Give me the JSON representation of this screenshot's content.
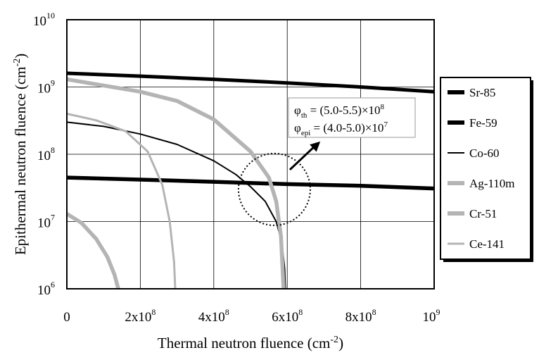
{
  "chart_data": {
    "type": "line",
    "xlabel": "Thermal neutron fluence (cm⁻²)",
    "xlabel_base": "Thermal neutron fluence (cm",
    "xlabel_exp": "-2",
    "xlabel_close": ")",
    "ylabel": "Epithermal neutron fluence (cm⁻²)",
    "ylabel_base": "Epithermal neutron fluence (cm",
    "ylabel_exp": "-2",
    "ylabel_close": ")",
    "xlim": [
      0,
      1000000000.0
    ],
    "ylim": [
      1000000.0,
      10000000000.0
    ],
    "yscale": "log",
    "grid": true,
    "legend_position": "right",
    "x_ticks": [
      {
        "value": 0,
        "base": "0",
        "exp": ""
      },
      {
        "value": 200000000.0,
        "base": "2x10",
        "exp": "8"
      },
      {
        "value": 400000000.0,
        "base": "4x10",
        "exp": "8"
      },
      {
        "value": 600000000.0,
        "base": "6x10",
        "exp": "8"
      },
      {
        "value": 800000000.0,
        "base": "8x10",
        "exp": "8"
      },
      {
        "value": 1000000000.0,
        "base": "10",
        "exp": "9"
      }
    ],
    "y_ticks": [
      {
        "value": 1000000.0,
        "base": "10",
        "exp": "6"
      },
      {
        "value": 10000000.0,
        "base": "10",
        "exp": "7"
      },
      {
        "value": 100000000.0,
        "base": "10",
        "exp": "8"
      },
      {
        "value": 1000000000.0,
        "base": "10",
        "exp": "9"
      },
      {
        "value": 10000000000.0,
        "base": "10",
        "exp": "10"
      }
    ],
    "series": [
      {
        "name": "Sr-85",
        "color": "#000000",
        "style": "thick",
        "x": [
          0,
          200000000.0,
          400000000.0,
          600000000.0,
          800000000.0,
          1000000000.0
        ],
        "y": [
          1600000000.0,
          1450000000.0,
          1300000000.0,
          1150000000.0,
          1000000000.0,
          850000000.0
        ]
      },
      {
        "name": "Fe-59",
        "color": "#000000",
        "style": "thick",
        "x": [
          0,
          200000000.0,
          400000000.0,
          600000000.0,
          800000000.0,
          1000000000.0
        ],
        "y": [
          45000000.0,
          42000000.0,
          39000000.0,
          36000000.0,
          34000000.0,
          31000000.0
        ]
      },
      {
        "name": "Co-60",
        "color": "#000000",
        "style": "thin",
        "x": [
          0,
          100000000.0,
          200000000.0,
          300000000.0,
          400000000.0,
          460000000.0,
          500000000.0,
          540000000.0,
          570000000.0,
          585000000.0,
          593000000.0,
          595000000.0
        ],
        "y": [
          300000000.0,
          260000000.0,
          200000000.0,
          140000000.0,
          80000000.0,
          50000000.0,
          33000000.0,
          20000000.0,
          10000000.0,
          5000000.0,
          2000000.0,
          1000000.0
        ]
      },
      {
        "name": "Ag-110m",
        "color": "#b4b4b4",
        "style": "thick",
        "x": [
          0,
          200000000.0,
          300000000.0,
          400000000.0,
          500000000.0,
          550000000.0,
          570000000.0,
          583000000.0,
          590000000.0
        ],
        "y": [
          1300000000.0,
          850000000.0,
          620000000.0,
          330000000.0,
          110000000.0,
          45000000.0,
          20000000.0,
          6000000.0,
          1000000.0
        ]
      },
      {
        "name": "Cr-51",
        "color": "#b4b4b4",
        "style": "thick",
        "x": [
          0,
          40000000.0,
          80000000.0,
          110000000.0,
          130000000.0,
          140000000.0
        ],
        "y": [
          13000000.0,
          9500000.0,
          5500000.0,
          3000000.0,
          1600000.0,
          1000000.0
        ]
      },
      {
        "name": "Ce-141",
        "color": "#b4b4b4",
        "style": "medium",
        "x": [
          0,
          80000000.0,
          160000000.0,
          220000000.0,
          260000000.0,
          280000000.0,
          292000000.0,
          295000000.0
        ],
        "y": [
          400000000.0,
          320000000.0,
          220000000.0,
          110000000.0,
          35000000.0,
          10000000.0,
          2500000.0,
          1000000.0
        ]
      }
    ],
    "annotations": {
      "line1": {
        "symbol": "φ",
        "sub": "th",
        "text": " = (5.0-5.5)×10",
        "exp": "8"
      },
      "line2": {
        "symbol": "φ",
        "sub": "epi",
        "text": " = (4.0-5.0)×10",
        "exp": "7"
      },
      "circle_center": {
        "x": 565000000.0,
        "y": 30000000.0
      },
      "arrow_target": {
        "x": 690000000.0,
        "y": 155000000.0
      }
    }
  }
}
